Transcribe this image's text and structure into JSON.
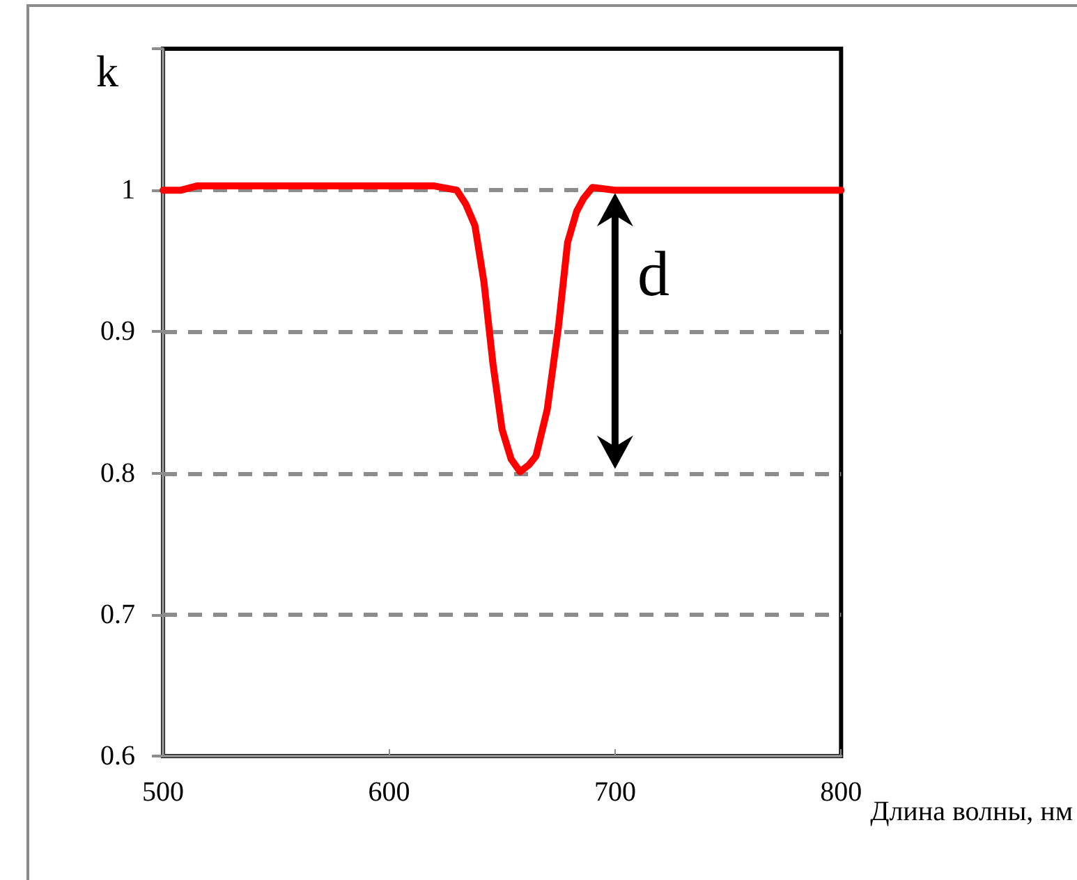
{
  "chart_data": {
    "type": "line",
    "ylabel": "k",
    "xlabel": "Длина волны, нм",
    "x": [
      500,
      508,
      515,
      540,
      580,
      620,
      630,
      634,
      638,
      642,
      646,
      650,
      654,
      658,
      662,
      665,
      670,
      675,
      679,
      683,
      686,
      690,
      700,
      750,
      800
    ],
    "series": [
      {
        "color": "#ff0000",
        "values": [
          1.0,
          1.0,
          1.003,
          1.003,
          1.003,
          1.003,
          1.0,
          0.99,
          0.975,
          0.935,
          0.877,
          0.831,
          0.81,
          0.801,
          0.806,
          0.812,
          0.845,
          0.904,
          0.963,
          0.985,
          0.994,
          1.002,
          1.0,
          1.0,
          1.0
        ]
      }
    ],
    "xlim": [
      500,
      800
    ],
    "xticks": [
      500,
      600,
      700,
      800
    ],
    "ylim": [
      0.6,
      1.1
    ],
    "yticks": [
      0.6,
      0.7,
      0.8,
      0.9,
      1,
      {
        "value": 1.1,
        "label": null
      }
    ],
    "grid": "y",
    "marker": "none",
    "line_style": "solid",
    "annotations": [
      "d"
    ]
  }
}
